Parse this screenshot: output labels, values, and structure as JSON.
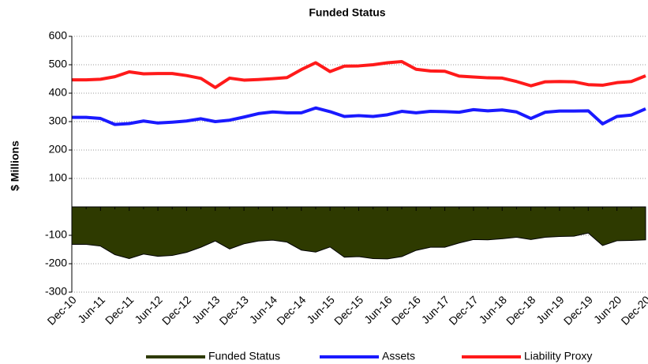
{
  "chart_data": {
    "type": "line",
    "title": "Funded Status",
    "ylabel": "$ Millions",
    "categories": [
      "Dec-10",
      null,
      "Jun-11",
      null,
      "Dec-11",
      null,
      "Jun-12",
      null,
      "Dec-12",
      null,
      "Jun-13",
      null,
      "Dec-13",
      null,
      "Jun-14",
      null,
      "Dec-14",
      null,
      "Jun-15",
      null,
      "Dec-15",
      null,
      "Jun-16",
      null,
      "Dec-16",
      null,
      "Jun-17",
      null,
      "Dec-17",
      null,
      "Jun-18",
      null,
      "Dec-18",
      null,
      "Jun-19",
      null,
      "Dec-19",
      null,
      "Jun-20",
      null,
      "Dec-20"
    ],
    "series": [
      {
        "name": "Funded Status",
        "color": "#2e3a00",
        "fill": true,
        "values": [
          -132,
          -132,
          -138,
          -168,
          -182,
          -166,
          -174,
          -171,
          -160,
          -142,
          -120,
          -148,
          -130,
          -120,
          -117,
          -124,
          -152,
          -159,
          -141,
          -177,
          -175,
          -182,
          -183,
          -175,
          -153,
          -142,
          -142,
          -127,
          -115,
          -116,
          -112,
          -107,
          -115,
          -107,
          -104,
          -103,
          -92,
          -136,
          -119,
          -118,
          -116
        ]
      },
      {
        "name": "Assets",
        "color": "#1a1aff",
        "values": [
          315,
          315,
          311,
          290,
          293,
          302,
          295,
          298,
          302,
          310,
          300,
          305,
          316,
          328,
          334,
          331,
          331,
          348,
          335,
          318,
          321,
          318,
          324,
          336,
          331,
          336,
          335,
          333,
          342,
          338,
          341,
          334,
          311,
          333,
          337,
          337,
          338,
          292,
          318,
          323,
          345
        ]
      },
      {
        "name": "Liability Proxy",
        "color": "#ff1a1a",
        "values": [
          447,
          447,
          449,
          458,
          475,
          468,
          469,
          469,
          462,
          452,
          420,
          453,
          446,
          448,
          451,
          455,
          483,
          507,
          476,
          495,
          496,
          500,
          507,
          511,
          484,
          478,
          477,
          460,
          457,
          454,
          453,
          441,
          426,
          440,
          441,
          440,
          430,
          428,
          437,
          441,
          461
        ]
      }
    ],
    "ylim": [
      -300,
      600
    ],
    "yticks": [
      -300,
      -200,
      -100,
      100,
      200,
      300,
      400,
      500,
      600
    ],
    "grid": true
  }
}
